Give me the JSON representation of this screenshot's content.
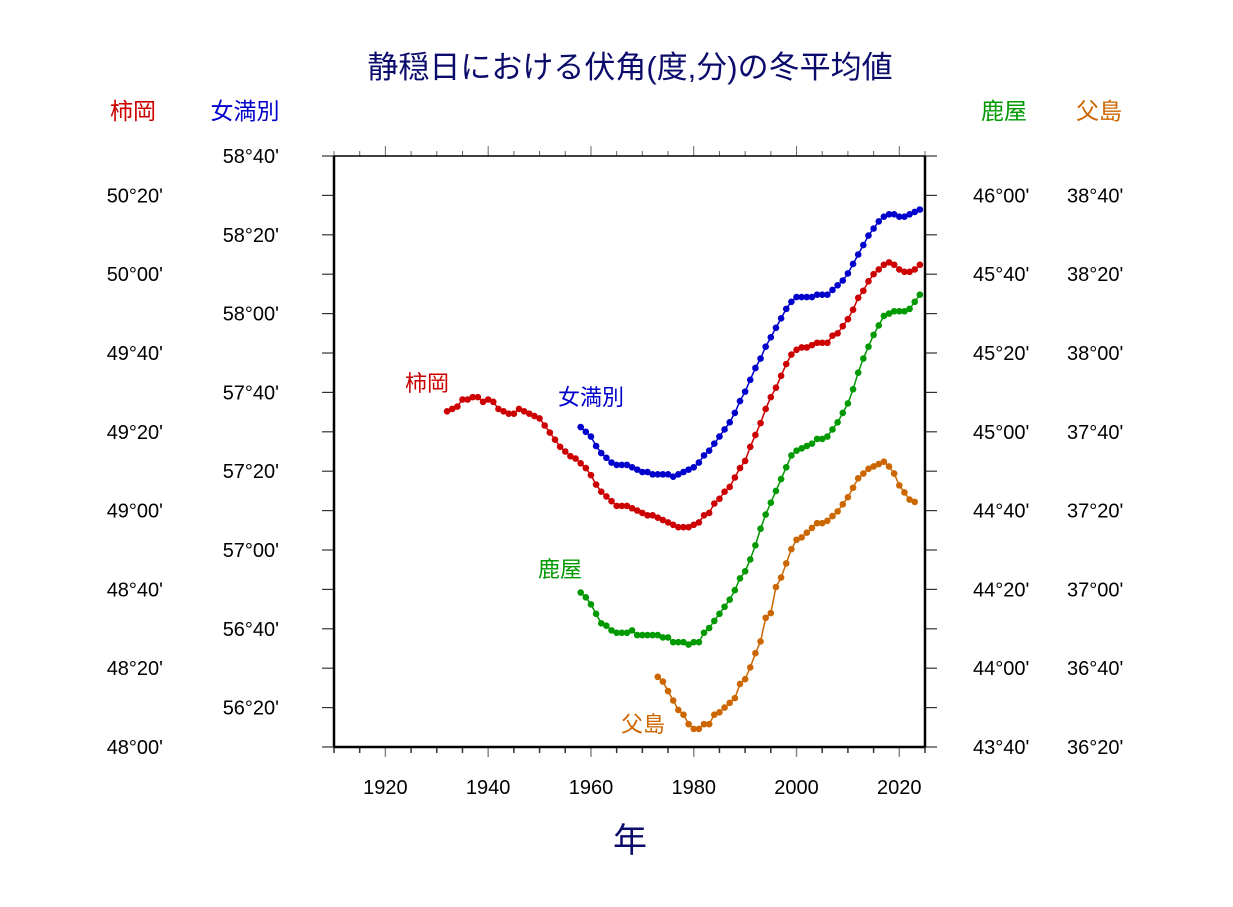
{
  "chart_data": {
    "type": "line",
    "title": "静穏日における伏角(度,分)の冬平均値",
    "title_color": "#0b0b6b",
    "xlabel": "年",
    "xlim": [
      1910,
      2025
    ],
    "x_ticks": [
      {
        "label": "1920",
        "value": 1920
      },
      {
        "label": "1940",
        "value": 1940
      },
      {
        "label": "1960",
        "value": 1960
      },
      {
        "label": "1980",
        "value": 1980
      },
      {
        "label": "2000",
        "value": 2000
      },
      {
        "label": "2020",
        "value": 2020
      }
    ],
    "axes": [
      {
        "name": "柿岡",
        "side": "left-outer",
        "color": "#cc0000",
        "ylim": [
          48.0,
          50.5
        ],
        "ticks": [
          {
            "label": "50°20'",
            "value": 50.3333
          },
          {
            "label": "50°00'",
            "value": 50.0
          },
          {
            "label": "49°40'",
            "value": 49.6667
          },
          {
            "label": "49°20'",
            "value": 49.3333
          },
          {
            "label": "49°00'",
            "value": 49.0
          },
          {
            "label": "48°40'",
            "value": 48.6667
          },
          {
            "label": "48°20'",
            "value": 48.3333
          },
          {
            "label": "48°00'",
            "value": 48.0
          }
        ]
      },
      {
        "name": "女満別",
        "side": "left-inner",
        "color": "#0000cc",
        "ylim": [
          56.1667,
          58.6667
        ],
        "ticks": [
          {
            "label": "58°40'",
            "value": 58.6667
          },
          {
            "label": "58°20'",
            "value": 58.3333
          },
          {
            "label": "58°00'",
            "value": 58.0
          },
          {
            "label": "57°40'",
            "value": 57.6667
          },
          {
            "label": "57°20'",
            "value": 57.3333
          },
          {
            "label": "57°00'",
            "value": 57.0
          },
          {
            "label": "56°40'",
            "value": 56.6667
          },
          {
            "label": "56°20'",
            "value": 56.3333
          }
        ]
      },
      {
        "name": "鹿屋",
        "side": "right-inner",
        "color": "#009900",
        "ylim": [
          43.6667,
          46.1667
        ],
        "ticks": [
          {
            "label": "46°00'",
            "value": 46.0
          },
          {
            "label": "45°40'",
            "value": 45.6667
          },
          {
            "label": "45°20'",
            "value": 45.3333
          },
          {
            "label": "45°00'",
            "value": 45.0
          },
          {
            "label": "44°40'",
            "value": 44.6667
          },
          {
            "label": "44°20'",
            "value": 44.3333
          },
          {
            "label": "44°00'",
            "value": 44.0
          },
          {
            "label": "43°40'",
            "value": 43.6667
          }
        ]
      },
      {
        "name": "父島",
        "side": "right-outer",
        "color": "#cc6600",
        "ylim": [
          36.3333,
          38.8333
        ],
        "ticks": [
          {
            "label": "38°40'",
            "value": 38.6667
          },
          {
            "label": "38°20'",
            "value": 38.3333
          },
          {
            "label": "38°00'",
            "value": 38.0
          },
          {
            "label": "37°40'",
            "value": 37.6667
          },
          {
            "label": "37°20'",
            "value": 37.3333
          },
          {
            "label": "37°00'",
            "value": 37.0
          },
          {
            "label": "36°40'",
            "value": 36.6667
          },
          {
            "label": "36°20'",
            "value": 36.3333
          }
        ]
      }
    ],
    "series": [
      {
        "name": "柿岡",
        "axis": 0,
        "color": "#cc0000",
        "start_year": 1932,
        "values": [
          49.42,
          49.43,
          49.44,
          49.47,
          49.47,
          49.48,
          49.48,
          49.46,
          49.47,
          49.46,
          49.43,
          49.42,
          49.41,
          49.41,
          49.43,
          49.42,
          49.41,
          49.4,
          49.39,
          49.36,
          49.33,
          49.3,
          49.27,
          49.25,
          49.23,
          49.22,
          49.2,
          49.18,
          49.15,
          49.11,
          49.08,
          49.06,
          49.04,
          49.02,
          49.02,
          49.02,
          49.01,
          49.0,
          48.99,
          48.98,
          48.98,
          48.97,
          48.96,
          48.95,
          48.94,
          48.93,
          48.93,
          48.93,
          48.94,
          48.95,
          48.98,
          48.99,
          49.03,
          49.05,
          49.08,
          49.1,
          49.14,
          49.18,
          49.21,
          49.27,
          49.32,
          49.37,
          49.43,
          49.48,
          49.52,
          49.57,
          49.62,
          49.66,
          49.68,
          49.69,
          49.69,
          49.7,
          49.71,
          49.71,
          49.71,
          49.74,
          49.75,
          49.78,
          49.81,
          49.85,
          49.9,
          49.93,
          49.97,
          50.0,
          50.02,
          50.04,
          50.05,
          50.04,
          50.02,
          50.01,
          50.01,
          50.02,
          50.04
        ]
      },
      {
        "name": "女満別",
        "axis": 1,
        "color": "#0000cc",
        "start_year": 1958,
        "values": [
          57.52,
          57.5,
          57.48,
          57.44,
          57.41,
          57.39,
          57.37,
          57.36,
          57.36,
          57.36,
          57.35,
          57.34,
          57.33,
          57.33,
          57.32,
          57.32,
          57.32,
          57.32,
          57.31,
          57.32,
          57.33,
          57.34,
          57.35,
          57.37,
          57.4,
          57.42,
          57.45,
          57.48,
          57.51,
          57.54,
          57.58,
          57.63,
          57.67,
          57.72,
          57.77,
          57.81,
          57.86,
          57.9,
          57.94,
          57.98,
          58.02,
          58.05,
          58.07,
          58.07,
          58.07,
          58.07,
          58.08,
          58.08,
          58.08,
          58.1,
          58.12,
          58.14,
          58.17,
          58.21,
          58.25,
          58.29,
          58.33,
          58.36,
          58.39,
          58.41,
          58.42,
          58.42,
          58.41,
          58.41,
          58.42,
          58.43,
          58.44
        ]
      },
      {
        "name": "鹿屋",
        "axis": 2,
        "color": "#009900",
        "start_year": 1958,
        "values": [
          44.32,
          44.3,
          44.27,
          44.23,
          44.19,
          44.18,
          44.16,
          44.15,
          44.15,
          44.15,
          44.16,
          44.14,
          44.14,
          44.14,
          44.14,
          44.14,
          44.13,
          44.13,
          44.11,
          44.11,
          44.11,
          44.1,
          44.11,
          44.11,
          44.15,
          44.17,
          44.2,
          44.23,
          44.26,
          44.29,
          44.33,
          44.38,
          44.41,
          44.46,
          44.52,
          44.59,
          44.65,
          44.7,
          44.75,
          44.8,
          44.85,
          44.9,
          44.92,
          44.93,
          44.94,
          44.95,
          44.97,
          44.97,
          44.98,
          45.01,
          45.04,
          45.08,
          45.12,
          45.18,
          45.25,
          45.31,
          45.36,
          45.41,
          45.45,
          45.49,
          45.5,
          45.51,
          45.51,
          45.51,
          45.52,
          45.55,
          45.58
        ]
      },
      {
        "name": "父島",
        "axis": 3,
        "color": "#cc6600",
        "start_year": 1973,
        "values": [
          36.63,
          36.61,
          36.57,
          36.53,
          36.49,
          36.47,
          36.43,
          36.41,
          36.41,
          36.43,
          36.43,
          36.47,
          36.48,
          36.5,
          36.52,
          36.54,
          36.6,
          36.62,
          36.67,
          36.73,
          36.78,
          36.88,
          36.9,
          37.01,
          37.05,
          37.11,
          37.17,
          37.21,
          37.22,
          37.24,
          37.26,
          37.28,
          37.28,
          37.29,
          37.31,
          37.33,
          37.36,
          37.39,
          37.43,
          37.47,
          37.49,
          37.51,
          37.52,
          37.53,
          37.54,
          37.52,
          37.49,
          37.44,
          37.41,
          37.38,
          37.37
        ]
      }
    ],
    "annotations": [
      "柿岡",
      "女満別",
      "鹿屋",
      "父島"
    ],
    "grid": false
  }
}
